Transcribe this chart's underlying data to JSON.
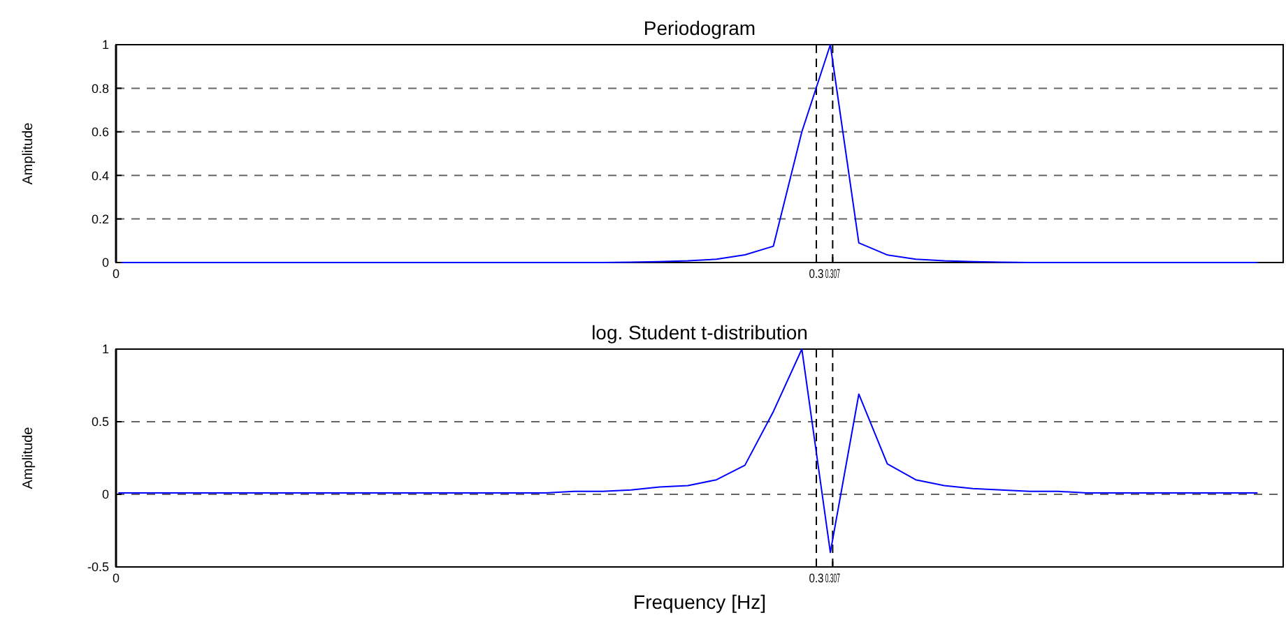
{
  "chart_data": [
    {
      "type": "line",
      "title": "Periodogram",
      "ylabel": "Amplitude",
      "x": [
        0.001,
        0.0132,
        0.0254,
        0.0376,
        0.0498,
        0.062,
        0.0742,
        0.0864,
        0.0986,
        0.1108,
        0.123,
        0.1352,
        0.1474,
        0.1596,
        0.1718,
        0.184,
        0.1962,
        0.2084,
        0.2206,
        0.2328,
        0.245,
        0.2572,
        0.2694,
        0.2816,
        0.2938,
        0.306,
        0.3182,
        0.3304,
        0.3426,
        0.3548,
        0.367,
        0.3792,
        0.3914,
        0.4036,
        0.4158,
        0.428,
        0.4402,
        0.4524,
        0.4646,
        0.4768,
        0.489
      ],
      "series": [
        {
          "color": "#0000ff",
          "values": [
            0,
            0,
            0,
            0,
            0,
            0,
            0,
            0,
            0,
            0,
            0,
            0,
            0,
            0,
            0,
            0,
            0,
            0,
            0.002,
            0.004,
            0.008,
            0.015,
            0.035,
            0.075,
            0.6,
            1,
            0.09,
            0.035,
            0.015,
            0.008,
            0.004,
            0.002,
            0,
            0,
            0,
            0,
            0,
            0,
            0,
            0,
            0
          ]
        }
      ],
      "xlim": [
        0,
        0.5
      ],
      "xticks": [
        0,
        0.3,
        0.307
      ],
      "ylim": [
        0,
        1
      ],
      "yticks": [
        0,
        0.2,
        0.4,
        0.6,
        0.8,
        1
      ],
      "grid": "y",
      "line_style": "solid",
      "ref_lines": [
        {
          "axis": "x",
          "value": 0.3,
          "line_style": "dashed",
          "color": "#000000"
        },
        {
          "axis": "x",
          "value": 0.307,
          "line_style": "dashed",
          "color": "#000000"
        }
      ]
    },
    {
      "type": "line",
      "title": "log. Student t-distribution",
      "ylabel": "Amplitude",
      "xlabel": "Frequency [Hz]",
      "x": [
        0.001,
        0.0132,
        0.0254,
        0.0376,
        0.0498,
        0.062,
        0.0742,
        0.0864,
        0.0986,
        0.1108,
        0.123,
        0.1352,
        0.1474,
        0.1596,
        0.1718,
        0.184,
        0.1962,
        0.2084,
        0.2206,
        0.2328,
        0.245,
        0.2572,
        0.2694,
        0.2816,
        0.2938,
        0.306,
        0.3182,
        0.3304,
        0.3426,
        0.3548,
        0.367,
        0.3792,
        0.3914,
        0.4036,
        0.4158,
        0.428,
        0.4402,
        0.4524,
        0.4646,
        0.4768,
        0.489
      ],
      "series": [
        {
          "color": "#0000ff",
          "values": [
            0.01,
            0.01,
            0.01,
            0.01,
            0.01,
            0.01,
            0.01,
            0.01,
            0.01,
            0.01,
            0.01,
            0.01,
            0.01,
            0.01,
            0.01,
            0.01,
            0.02,
            0.02,
            0.03,
            0.05,
            0.06,
            0.1,
            0.2,
            0.57,
            1,
            -0.4,
            0.69,
            0.21,
            0.1,
            0.06,
            0.04,
            0.03,
            0.02,
            0.02,
            0.01,
            0.01,
            0.01,
            0.01,
            0.01,
            0.01,
            0.01
          ]
        }
      ],
      "xlim": [
        0,
        0.5
      ],
      "xticks": [
        0,
        0.3,
        0.307
      ],
      "ylim": [
        -0.5,
        1
      ],
      "yticks": [
        -0.5,
        0,
        0.5,
        1
      ],
      "grid": "y",
      "line_style": "solid",
      "ref_lines": [
        {
          "axis": "x",
          "value": 0.3,
          "line_style": "dashed",
          "color": "#000000"
        },
        {
          "axis": "x",
          "value": 0.307,
          "line_style": "dashed",
          "color": "#000000"
        }
      ]
    }
  ]
}
